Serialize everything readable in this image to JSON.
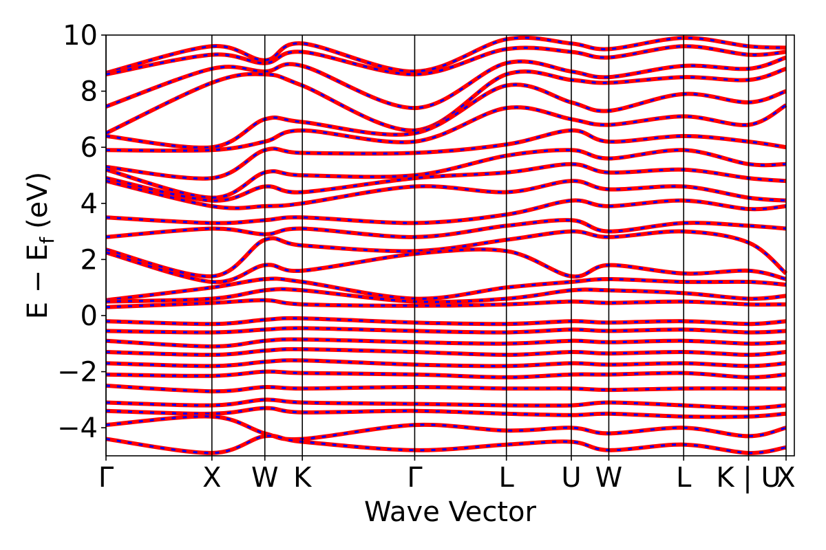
{
  "chart_data": {
    "type": "line",
    "title": "",
    "xlabel": "Wave Vector",
    "ylabel": {
      "main": "E − E",
      "sub": "f",
      "unit": "(eV)"
    },
    "ylim": [
      -5,
      10
    ],
    "yticks": [
      -4,
      -2,
      0,
      2,
      4,
      6,
      8,
      10
    ],
    "ytick_labels": [
      "−4",
      "−2",
      "0",
      "2",
      "4",
      "6",
      "8",
      "10"
    ],
    "xlim": [
      0,
      6.5
    ],
    "kpoints": [
      {
        "label": "Γ",
        "x": 0.0
      },
      {
        "label": "X",
        "x": 1.0
      },
      {
        "label": "W",
        "x": 1.5
      },
      {
        "label": "K",
        "x": 1.854
      },
      {
        "label": "Γ",
        "x": 2.915
      },
      {
        "label": "L",
        "x": 3.781
      },
      {
        "label": "U",
        "x": 4.394
      },
      {
        "label": "W",
        "x": 4.748
      },
      {
        "label": "L",
        "x": 5.455
      },
      {
        "label": "K | U",
        "x": 6.068
      },
      {
        "label": "X",
        "x": 6.422
      }
    ],
    "grid": false,
    "colors": {
      "series_a": "#ff0000",
      "series_b": "#0000ff",
      "kpath_lines": "#000000"
    },
    "series": [
      {
        "style": "solid-red-under-dashed-blue",
        "bands": [
          [
            8.65,
            9.6,
            9.1,
            9.7,
            8.7,
            9.85,
            9.7,
            9.5,
            9.9,
            9.6,
            9.55
          ],
          [
            8.6,
            9.3,
            9.0,
            9.4,
            8.6,
            9.5,
            9.4,
            9.2,
            9.6,
            9.3,
            9.4
          ],
          [
            7.45,
            8.8,
            8.7,
            8.9,
            7.4,
            9.0,
            8.7,
            8.5,
            8.9,
            8.8,
            9.2
          ],
          [
            6.5,
            8.3,
            8.6,
            8.2,
            6.6,
            8.6,
            8.4,
            8.3,
            8.5,
            8.4,
            8.8
          ],
          [
            6.4,
            6.0,
            7.0,
            6.9,
            6.5,
            8.2,
            7.6,
            7.3,
            7.9,
            7.6,
            8.0
          ],
          [
            5.9,
            5.9,
            6.2,
            6.6,
            6.2,
            7.4,
            7.0,
            6.8,
            7.1,
            6.8,
            7.5
          ],
          [
            5.3,
            4.9,
            5.9,
            5.8,
            5.8,
            6.1,
            6.6,
            6.2,
            6.4,
            6.2,
            6.0
          ],
          [
            5.2,
            4.2,
            5.1,
            5.0,
            5.0,
            5.7,
            5.9,
            5.6,
            5.9,
            5.4,
            5.4
          ],
          [
            4.9,
            4.1,
            4.6,
            4.4,
            4.9,
            5.1,
            5.4,
            5.1,
            5.2,
            4.9,
            4.8
          ],
          [
            4.8,
            3.9,
            3.9,
            4.0,
            4.6,
            4.4,
            4.8,
            4.5,
            4.6,
            4.2,
            4.1
          ],
          [
            3.5,
            3.3,
            3.4,
            3.5,
            3.3,
            3.6,
            4.1,
            3.9,
            4.1,
            3.8,
            3.9
          ],
          [
            2.8,
            3.1,
            2.9,
            3.1,
            2.8,
            3.2,
            3.4,
            3.0,
            3.3,
            3.2,
            3.1
          ],
          [
            2.35,
            1.4,
            2.7,
            2.5,
            2.3,
            2.7,
            3.0,
            2.8,
            3.0,
            2.6,
            1.5
          ],
          [
            2.25,
            1.2,
            1.8,
            1.6,
            2.2,
            2.3,
            1.4,
            1.8,
            1.5,
            1.6,
            1.3
          ],
          [
            0.55,
            1.0,
            1.3,
            1.2,
            0.6,
            1.0,
            1.2,
            1.3,
            1.2,
            1.2,
            1.1
          ],
          [
            0.5,
            0.6,
            0.9,
            0.9,
            0.5,
            0.6,
            0.9,
            0.9,
            0.8,
            0.6,
            0.7
          ],
          [
            0.3,
            0.45,
            0.55,
            0.4,
            0.35,
            0.4,
            0.5,
            0.45,
            0.5,
            0.4,
            0.4
          ],
          [
            -0.2,
            -0.3,
            -0.15,
            -0.1,
            -0.25,
            -0.3,
            -0.2,
            -0.25,
            -0.2,
            -0.3,
            -0.2
          ],
          [
            -0.55,
            -0.6,
            -0.5,
            -0.45,
            -0.55,
            -0.6,
            -0.5,
            -0.55,
            -0.5,
            -0.6,
            -0.55
          ],
          [
            -0.9,
            -1.1,
            -0.9,
            -0.85,
            -0.95,
            -1.0,
            -0.9,
            -0.95,
            -0.9,
            -1.0,
            -0.95
          ],
          [
            -1.3,
            -1.4,
            -1.25,
            -1.2,
            -1.3,
            -1.4,
            -1.3,
            -1.35,
            -1.3,
            -1.4,
            -1.3
          ],
          [
            -1.7,
            -1.8,
            -1.65,
            -1.6,
            -1.75,
            -1.8,
            -1.7,
            -1.75,
            -1.7,
            -1.8,
            -1.7
          ],
          [
            -2.1,
            -2.15,
            -2.0,
            -2.05,
            -2.1,
            -2.2,
            -2.1,
            -2.1,
            -2.05,
            -2.2,
            -2.1
          ],
          [
            -2.5,
            -2.7,
            -2.55,
            -2.6,
            -2.55,
            -2.6,
            -2.6,
            -2.65,
            -2.6,
            -2.6,
            -2.6
          ],
          [
            -3.1,
            -3.2,
            -3.0,
            -3.1,
            -3.15,
            -3.2,
            -3.2,
            -3.1,
            -3.2,
            -3.3,
            -3.2
          ],
          [
            -3.4,
            -3.5,
            -3.3,
            -3.45,
            -3.4,
            -3.5,
            -3.55,
            -3.5,
            -3.6,
            -3.6,
            -3.5
          ],
          [
            -3.9,
            -3.6,
            -4.2,
            -4.4,
            -3.9,
            -4.1,
            -4.0,
            -4.2,
            -4.0,
            -4.3,
            -4.0
          ],
          [
            -4.4,
            -4.9,
            -4.3,
            -4.5,
            -4.8,
            -4.6,
            -4.5,
            -4.8,
            -4.6,
            -4.9,
            -4.7
          ]
        ]
      }
    ]
  }
}
